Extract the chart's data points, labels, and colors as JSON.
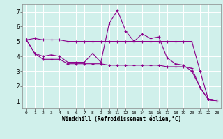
{
  "background_color": "#d0f0eb",
  "line_color": "#8b008b",
  "x_ticks": [
    0,
    1,
    2,
    3,
    4,
    5,
    6,
    7,
    8,
    9,
    10,
    11,
    12,
    13,
    14,
    15,
    16,
    17,
    18,
    19,
    20,
    21,
    22,
    23
  ],
  "xlabel": "Windchill (Refroidissement éolien,°C)",
  "ylabel_ticks": [
    1,
    2,
    3,
    4,
    5,
    6,
    7
  ],
  "ylim": [
    0.5,
    7.5
  ],
  "xlim": [
    -0.5,
    23.5
  ],
  "line1_x": [
    0,
    1,
    2,
    3,
    4,
    5,
    6,
    7,
    8,
    9,
    10,
    11,
    12,
    13,
    14,
    15,
    16,
    17,
    18,
    19,
    20,
    21,
    22,
    23
  ],
  "line1_y": [
    5.1,
    5.2,
    5.1,
    5.1,
    5.1,
    5.0,
    5.0,
    5.0,
    5.0,
    5.0,
    5.0,
    5.0,
    5.0,
    5.0,
    5.0,
    5.0,
    5.0,
    5.0,
    5.0,
    5.0,
    5.0,
    3.0,
    1.1,
    1.0
  ],
  "line2_x": [
    0,
    1,
    2,
    3,
    4,
    5,
    6,
    7,
    8,
    9,
    10,
    11,
    12,
    13,
    14,
    15,
    16,
    17,
    18,
    19,
    20,
    21,
    22,
    23
  ],
  "line2_y": [
    5.1,
    4.2,
    4.0,
    4.1,
    4.0,
    3.6,
    3.6,
    3.6,
    4.2,
    3.6,
    6.2,
    7.1,
    5.7,
    5.0,
    5.5,
    5.2,
    5.3,
    3.9,
    3.5,
    3.4,
    3.0,
    1.9,
    1.1,
    1.0
  ],
  "line3_x": [
    0,
    1,
    2,
    3,
    4,
    5,
    6,
    7,
    8,
    9,
    10,
    11,
    12,
    13,
    14,
    15,
    16,
    17,
    18,
    19,
    20,
    21,
    22,
    23
  ],
  "line3_y": [
    5.1,
    4.2,
    3.8,
    3.8,
    3.8,
    3.5,
    3.5,
    3.5,
    3.5,
    3.5,
    3.4,
    3.4,
    3.4,
    3.4,
    3.4,
    3.4,
    3.4,
    3.3,
    3.3,
    3.3,
    3.2,
    1.9,
    1.1,
    1.0
  ],
  "xtick_fontsize": 4.5,
  "ytick_fontsize": 5.5,
  "xlabel_fontsize": 5.5,
  "grid_color": "#ffffff",
  "line_width": 0.8,
  "marker_size": 3.0
}
